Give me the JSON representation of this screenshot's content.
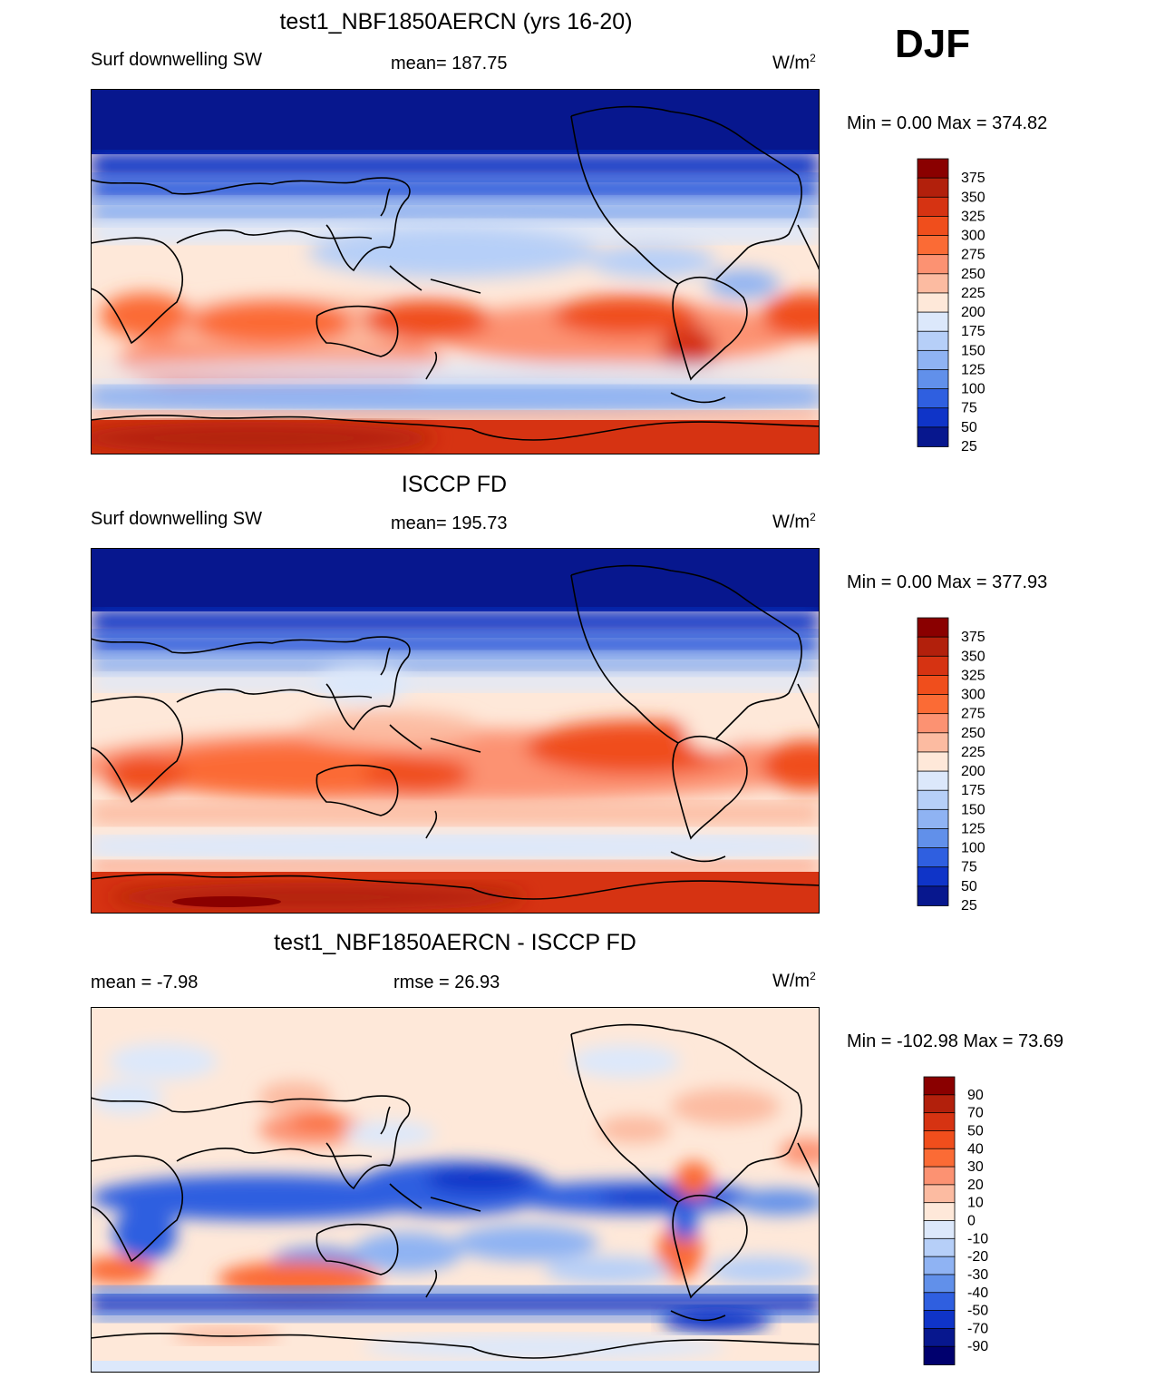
{
  "season": "DJF",
  "panels": [
    {
      "id": "model",
      "title": "test1_NBF1850AERCN (yrs 16-20)",
      "left_label": "Surf downwelling SW",
      "center_label": "mean= 187.75",
      "units_base": "W/m",
      "units_exp": "2",
      "minmax": "Min =    0.00 Max = 374.82",
      "levels": [
        "375",
        "350",
        "325",
        "300",
        "275",
        "250",
        "225",
        "200",
        "175",
        "150",
        "125",
        "100",
        "75",
        "50",
        "25"
      ],
      "colors": [
        "#8a0000",
        "#b2200c",
        "#d63312",
        "#f04e1c",
        "#fb6b35",
        "#fc9272",
        "#fcbba1",
        "#fee8d9",
        "#dce8fb",
        "#b6cff8",
        "#8fb3f3",
        "#6190ea",
        "#2f5fe0",
        "#0f34c8",
        "#07178e"
      ]
    },
    {
      "id": "obs",
      "title": "ISCCP FD",
      "left_label": "Surf downwelling SW",
      "center_label": "mean= 195.73",
      "units_base": "W/m",
      "units_exp": "2",
      "minmax": "Min =    0.00 Max = 377.93",
      "levels": [
        "375",
        "350",
        "325",
        "300",
        "275",
        "250",
        "225",
        "200",
        "175",
        "150",
        "125",
        "100",
        "75",
        "50",
        "25"
      ],
      "colors": [
        "#8a0000",
        "#b2200c",
        "#d63312",
        "#f04e1c",
        "#fb6b35",
        "#fc9272",
        "#fcbba1",
        "#fee8d9",
        "#dce8fb",
        "#b6cff8",
        "#8fb3f3",
        "#6190ea",
        "#2f5fe0",
        "#0f34c8",
        "#07178e"
      ]
    },
    {
      "id": "diff",
      "title": "test1_NBF1850AERCN - ISCCP FD",
      "left_label": "mean =  -7.98",
      "center_label": "rmse =  26.93",
      "units_base": "W/m",
      "units_exp": "2",
      "minmax": "Min = -102.98 Max =  73.69",
      "levels": [
        "90",
        "70",
        "50",
        "40",
        "30",
        "20",
        "10",
        "0",
        "-10",
        "-20",
        "-30",
        "-40",
        "-50",
        "-70",
        "-90"
      ],
      "colors": [
        "#8a0000",
        "#b2200c",
        "#d63312",
        "#f04e1c",
        "#fb6b35",
        "#fc9272",
        "#fcbba1",
        "#fee8d9",
        "#dce8fb",
        "#b6cff8",
        "#8fb3f3",
        "#6190ea",
        "#2f5fe0",
        "#0f34c8",
        "#07178e",
        "#00006e"
      ]
    }
  ]
}
